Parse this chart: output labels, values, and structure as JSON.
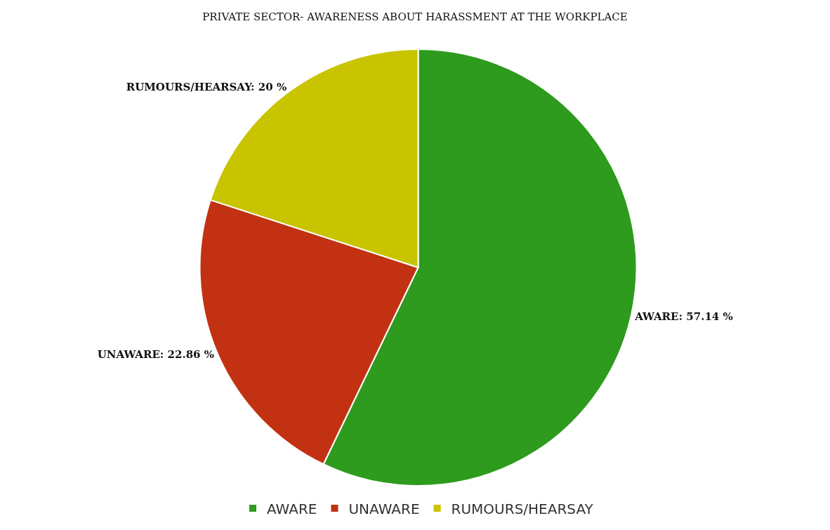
{
  "chart_data": {
    "type": "pie",
    "title": "PRIVATE SECTOR- AWARENESS ABOUT HARASSMENT AT THE WORKPLACE",
    "categories": [
      "AWARE",
      "UNAWARE",
      "RUMOURS/HEARSAY"
    ],
    "values": [
      57.14,
      22.86,
      20
    ],
    "value_labels": [
      "AWARE: 57.14 %",
      "UNAWARE: 22.86 %",
      "RUMOURS/HEARSAY: 20 %"
    ],
    "colors": [
      "#2e9a1e",
      "#c23212",
      "#c8c400"
    ],
    "legend": "bottom"
  }
}
